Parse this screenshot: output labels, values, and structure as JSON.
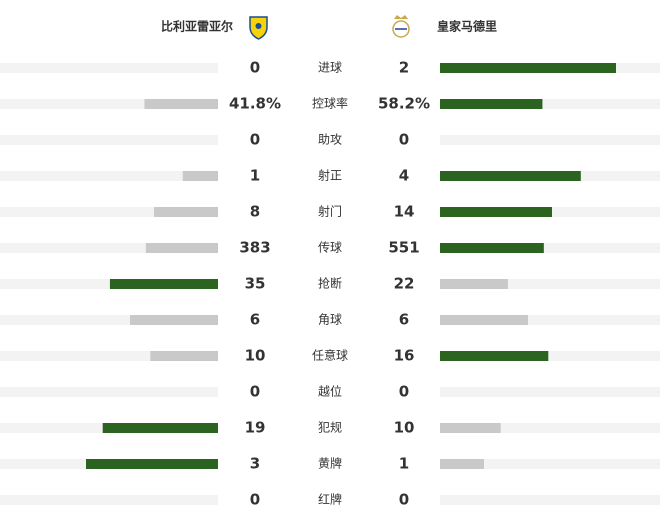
{
  "header": {
    "home": "比利亚雷亚尔",
    "away": "皇家马德里"
  },
  "colors": {
    "lead": "#2b6420",
    "trail": "#c9c9c9",
    "track": "#f3f3f3"
  },
  "rows": [
    {
      "label": "进球",
      "home": 0,
      "away": 2
    },
    {
      "label": "控球率",
      "home": 41.8,
      "away": 58.2,
      "home_label": "41.8%",
      "away_label": "58.2%"
    },
    {
      "label": "助攻",
      "home": 0,
      "away": 0
    },
    {
      "label": "射正",
      "home": 1,
      "away": 4
    },
    {
      "label": "射门",
      "home": 8,
      "away": 14
    },
    {
      "label": "传球",
      "home": 383,
      "away": 551
    },
    {
      "label": "抢断",
      "home": 35,
      "away": 22
    },
    {
      "label": "角球",
      "home": 6,
      "away": 6
    },
    {
      "label": "任意球",
      "home": 10,
      "away": 16
    },
    {
      "label": "越位",
      "home": 0,
      "away": 0
    },
    {
      "label": "犯规",
      "home": 19,
      "away": 10
    },
    {
      "label": "黄牌",
      "home": 3,
      "away": 1
    },
    {
      "label": "红牌",
      "home": 0,
      "away": 0
    }
  ]
}
